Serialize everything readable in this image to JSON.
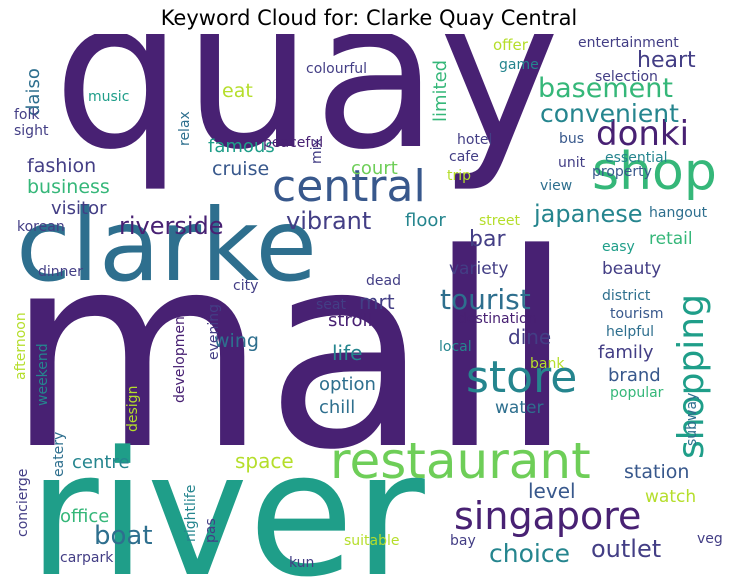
{
  "title": "Keyword Cloud for: Clarke Quay Central",
  "palette": {
    "dark_purple": "#482173",
    "indigo": "#433e85",
    "blue": "#38588c",
    "steel": "#2e6f8e",
    "teal": "#25858e",
    "sea": "#1f9e89",
    "green": "#35b779",
    "lime": "#6ece58",
    "yellow_green": "#b5de2b"
  },
  "words": {
    "quay": "quay",
    "mall": "mall",
    "river": "river",
    "clarke": "clarke",
    "restaurant": "restaurant",
    "central": "central",
    "shop": "shop",
    "store": "store",
    "singapore": "singapore",
    "shopping": "shopping",
    "donki": "donki",
    "tourist": "tourist",
    "basement": "basement",
    "convenient": "convenient",
    "riverside": "riverside",
    "japanese": "japanese",
    "boat": "boat",
    "choice": "choice",
    "outlet": "outlet",
    "vibrant": "vibrant",
    "heart": "heart",
    "business": "business",
    "fashion": "fashion",
    "cruise": "cruise",
    "famous": "famous",
    "court": "court",
    "visitor": "visitor",
    "bar": "bar",
    "floor": "floor",
    "life": "life",
    "space": "space",
    "centre": "centre",
    "level": "level",
    "station": "station",
    "office": "office",
    "watch": "watch",
    "wing": "wing",
    "mrt": "mrt",
    "stroll": "stroll",
    "dine": "dine",
    "option": "option",
    "chill": "chill",
    "water": "water",
    "family": "family",
    "brand": "brand",
    "beauty": "beauty",
    "variety": "variety",
    "retail": "retail",
    "daiso": "daiso",
    "eat": "eat",
    "limited": "limited",
    "offer": "offer",
    "game": "game",
    "entertainment": "entertainment",
    "selection": "selection",
    "colourful": "colourful",
    "music": "music",
    "folk": "folk",
    "sight": "sight",
    "relax": "relax",
    "mix": "mix",
    "peaceful": "peaceful",
    "hotel": "hotel",
    "cafe": "cafe",
    "trip": "trip",
    "unit": "unit",
    "essential": "essential",
    "bus": "bus",
    "view": "view",
    "property": "property",
    "hangout": "hangout",
    "street": "street",
    "easy": "easy",
    "korean": "korean",
    "dinner": "dinner",
    "city": "city",
    "dead": "dead",
    "seat": "seat",
    "destination": "destination",
    "district": "district",
    "tourism": "tourism",
    "helpful": "helpful",
    "local": "local",
    "bank": "bank",
    "popular": "popular",
    "subway": "subway",
    "afternoon": "afternoon",
    "weekend": "weekend",
    "evening": "evening",
    "development": "development",
    "design": "design",
    "eatery": "eatery",
    "concierge": "concierge",
    "nightlife": "nightlife",
    "pas": "pas",
    "kun": "kun",
    "suitable": "suitable",
    "bay": "bay",
    "veg": "veg",
    "carpark": "carpark"
  }
}
